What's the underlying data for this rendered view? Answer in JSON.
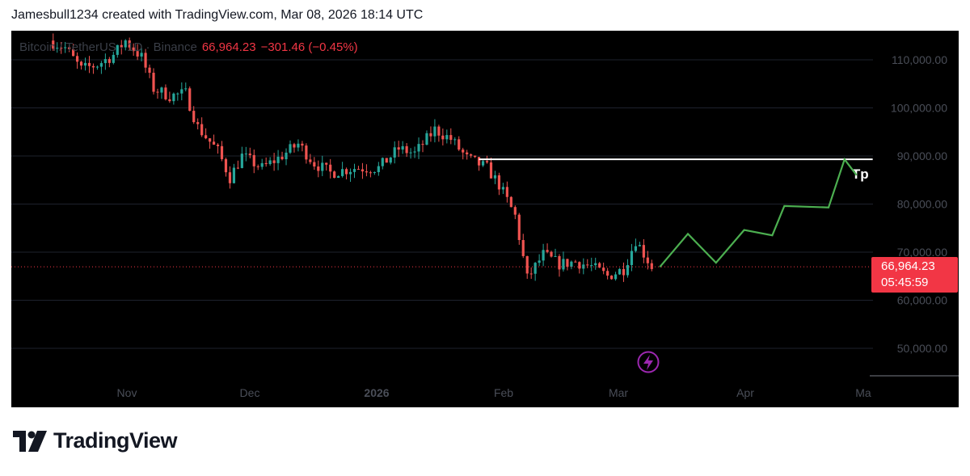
{
  "header": {
    "text": "Jamesbull1234 created with TradingView.com, Mar 08, 2026 18:14 UTC"
  },
  "legend": {
    "symbol": "Bitcoin / TetherUS · 1D · Binance",
    "price": "66,964.23",
    "change": "−301.46 (−0.45%)"
  },
  "price_tag": {
    "price": "66,964.23",
    "countdown": "05:45:59"
  },
  "annotation": {
    "tp_label": "Tp"
  },
  "footer": {
    "brand": "TradingView"
  },
  "colors": {
    "up": "#26a69a",
    "down": "#ef5350",
    "projection": "#4caf50",
    "tag": "#f23645",
    "lightning": "#9c27b0"
  },
  "chart_data": {
    "type": "candlestick",
    "y_axis": {
      "ticks": [
        110000,
        100000,
        90000,
        80000,
        70000,
        60000,
        50000
      ],
      "tick_labels": [
        "110,000.00",
        "100,000.00",
        "90,000.00",
        "80,000.00",
        "70,000.00",
        "60,000.00",
        "50,000.00"
      ],
      "range": [
        43500,
        116000
      ]
    },
    "x_axis": {
      "labels": [
        "Nov",
        "Dec",
        "2026",
        "Feb",
        "Mar",
        "Apr",
        "Ma"
      ]
    },
    "last_price": 66964.23,
    "target_line": {
      "price": 89300,
      "label": "Tp",
      "from": "2026-01-23",
      "to": "2026-05-01"
    },
    "projection_path": [
      {
        "date": "2026-03-09",
        "price": 66900
      },
      {
        "date": "2026-03-16",
        "price": 73800
      },
      {
        "date": "2026-03-23",
        "price": 67800
      },
      {
        "date": "2026-03-30",
        "price": 74600
      },
      {
        "date": "2026-04-06",
        "price": 73500
      },
      {
        "date": "2026-04-09",
        "price": 79600
      },
      {
        "date": "2026-04-20",
        "price": 79300
      },
      {
        "date": "2026-04-24",
        "price": 89300
      },
      {
        "date": "2026-04-27",
        "price": 86000
      }
    ],
    "close_path": [
      {
        "date": "2025-10-09",
        "price": 114000
      },
      {
        "date": "2025-10-13",
        "price": 112500
      },
      {
        "date": "2025-10-17",
        "price": 108000
      },
      {
        "date": "2025-10-21",
        "price": 109000
      },
      {
        "date": "2025-10-25",
        "price": 111000
      },
      {
        "date": "2025-10-28",
        "price": 114000
      },
      {
        "date": "2025-11-01",
        "price": 110500
      },
      {
        "date": "2025-11-04",
        "price": 104000
      },
      {
        "date": "2025-11-08",
        "price": 102500
      },
      {
        "date": "2025-11-12",
        "price": 103000
      },
      {
        "date": "2025-11-15",
        "price": 96000
      },
      {
        "date": "2025-11-20",
        "price": 91000
      },
      {
        "date": "2025-11-23",
        "price": 85500
      },
      {
        "date": "2025-11-26",
        "price": 90000
      },
      {
        "date": "2025-12-01",
        "price": 87500
      },
      {
        "date": "2025-12-05",
        "price": 89500
      },
      {
        "date": "2025-12-10",
        "price": 92500
      },
      {
        "date": "2025-12-14",
        "price": 88500
      },
      {
        "date": "2025-12-18",
        "price": 86500
      },
      {
        "date": "2025-12-24",
        "price": 87500
      },
      {
        "date": "2025-12-30",
        "price": 87500
      },
      {
        "date": "2026-01-04",
        "price": 91500
      },
      {
        "date": "2026-01-08",
        "price": 90500
      },
      {
        "date": "2026-01-13",
        "price": 95500
      },
      {
        "date": "2026-01-17",
        "price": 93500
      },
      {
        "date": "2026-01-21",
        "price": 89500
      },
      {
        "date": "2026-01-26",
        "price": 87500
      },
      {
        "date": "2026-01-29",
        "price": 84000
      },
      {
        "date": "2026-02-02",
        "price": 77500
      },
      {
        "date": "2026-02-05",
        "price": 64500
      },
      {
        "date": "2026-02-09",
        "price": 69500
      },
      {
        "date": "2026-02-13",
        "price": 67500
      },
      {
        "date": "2026-02-17",
        "price": 68000
      },
      {
        "date": "2026-02-21",
        "price": 67000
      },
      {
        "date": "2026-02-25",
        "price": 65000
      },
      {
        "date": "2026-03-01",
        "price": 66500
      },
      {
        "date": "2026-03-04",
        "price": 72500
      },
      {
        "date": "2026-03-08",
        "price": 66964
      }
    ]
  }
}
